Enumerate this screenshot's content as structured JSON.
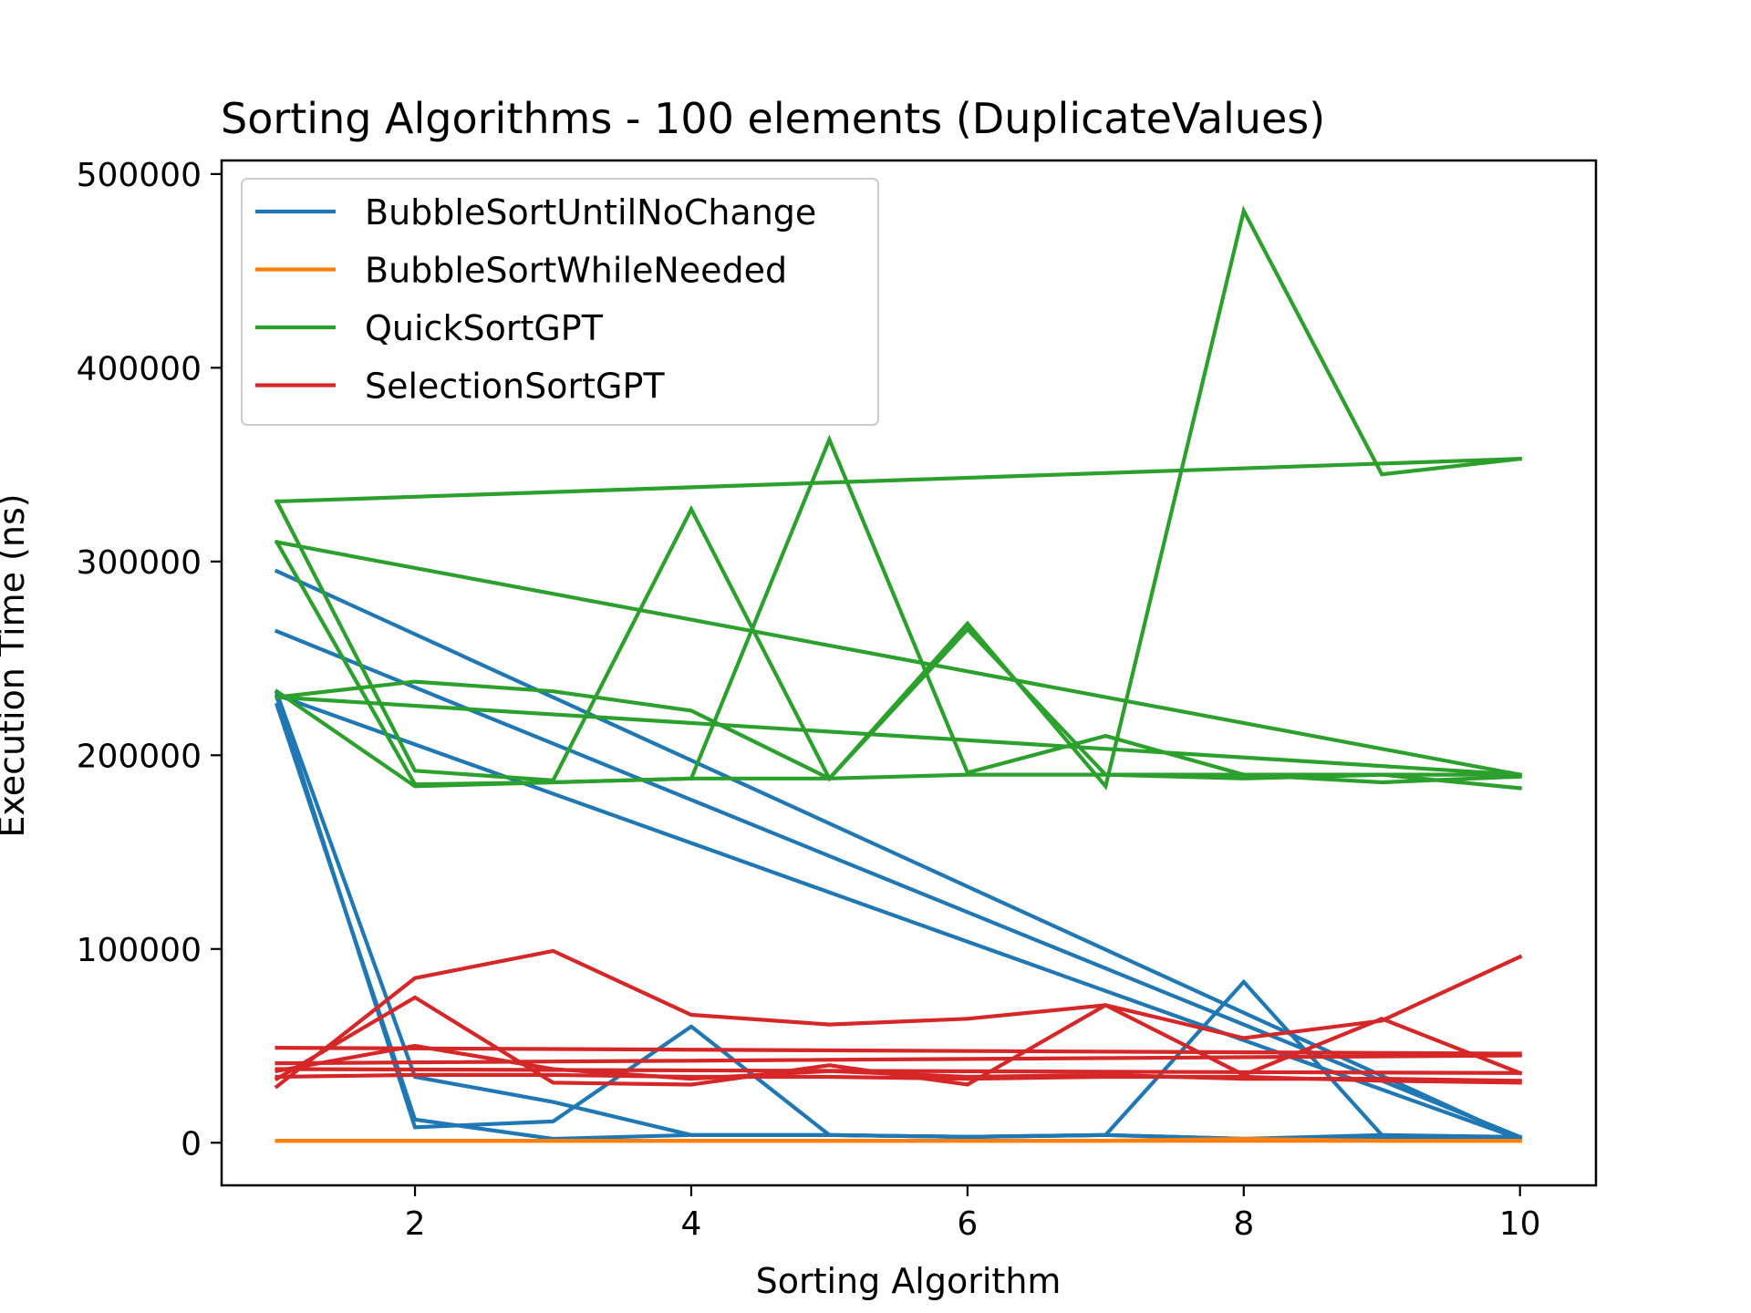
{
  "chart_data": {
    "type": "line",
    "title": "Sorting Algorithms - 100 elements (DuplicateValues)",
    "xlabel": "Sorting Algorithm",
    "ylabel": "Execution Time (ns)",
    "xlim": [
      0.6,
      10.55
    ],
    "ylim": [
      -22000,
      507000
    ],
    "x_ticks": [
      2,
      4,
      6,
      8,
      10
    ],
    "y_ticks": [
      0,
      100000,
      200000,
      300000,
      400000,
      500000
    ],
    "grid": false,
    "legend_position": "upper-left",
    "series": [
      {
        "name": "BubbleSortUntilNoChange",
        "color": "#1f77b4",
        "runs": [
          {
            "x": [
              1,
              2,
              3,
              4,
              5,
              6,
              7,
              8,
              9,
              10
            ],
            "y": [
              226000,
              12000,
              2000,
              4000,
              4000,
              3000,
              4000,
              2000,
              2000,
              2000
            ]
          },
          {
            "x": [
              1,
              2,
              3,
              4,
              5,
              6,
              7,
              8,
              9,
              10
            ],
            "y": [
              232000,
              34000,
              21000,
              4000,
              4000,
              3000,
              4000,
              2000,
              4000,
              2000
            ]
          },
          {
            "x": [
              1,
              2,
              3,
              4,
              5,
              6,
              7,
              8,
              9,
              10
            ],
            "y": [
              230000,
              8000,
              11000,
              60000,
              4000,
              3000,
              4000,
              83000,
              4000,
              3000
            ]
          },
          {
            "x": [
              1,
              10
            ],
            "y": [
              295000,
              2000
            ]
          },
          {
            "x": [
              1,
              10
            ],
            "y": [
              264000,
              3000
            ]
          },
          {
            "x": [
              1,
              10
            ],
            "y": [
              231000,
              2000
            ]
          }
        ]
      },
      {
        "name": "BubbleSortWhileNeeded",
        "color": "#ff7f0e",
        "runs": [
          {
            "x": [
              1,
              2,
              3,
              4,
              5,
              6,
              7,
              8,
              9,
              10
            ],
            "y": [
              1000,
              1000,
              1000,
              1000,
              1000,
              1000,
              1000,
              2000,
              1000,
              1000
            ]
          },
          {
            "x": [
              1,
              2,
              3,
              4,
              5,
              6,
              7,
              8,
              9,
              10
            ],
            "y": [
              1000,
              1000,
              1000,
              1000,
              1000,
              1000,
              1000,
              1000,
              1000,
              1000
            ]
          }
        ]
      },
      {
        "name": "QuickSortGPT",
        "color": "#2ca02c",
        "runs": [
          {
            "x": [
              1,
              2,
              3,
              4,
              5,
              6,
              7,
              8,
              9,
              10
            ],
            "y": [
              331000,
              192000,
              187000,
              327000,
              188000,
              268000,
              184000,
              481000,
              345000,
              353000
            ]
          },
          {
            "x": [
              1,
              2,
              3,
              4,
              5,
              6,
              7,
              8,
              9,
              10
            ],
            "y": [
              310000,
              185000,
              186000,
              188000,
              363000,
              191000,
              210000,
              190000,
              190000,
              183000
            ]
          },
          {
            "x": [
              1,
              2,
              3,
              4,
              5,
              6,
              7,
              8,
              9,
              10
            ],
            "y": [
              230000,
              238000,
              233000,
              223000,
              188000,
              265000,
              190000,
              188000,
              190000,
              190000
            ]
          },
          {
            "x": [
              1,
              2,
              3,
              4,
              5,
              6,
              7,
              8,
              9,
              10
            ],
            "y": [
              233000,
              184000,
              186000,
              188000,
              188000,
              190000,
              190000,
              190000,
              186000,
              189000
            ]
          },
          {
            "x": [
              1,
              10
            ],
            "y": [
              331000,
              353000
            ]
          },
          {
            "x": [
              1,
              10
            ],
            "y": [
              310000,
              190000
            ]
          },
          {
            "x": [
              1,
              10
            ],
            "y": [
              230000,
              190000
            ]
          }
        ]
      },
      {
        "name": "SelectionSortGPT",
        "color": "#d62728",
        "runs": [
          {
            "x": [
              1,
              2,
              3,
              4,
              5,
              6,
              7,
              8,
              9,
              10
            ],
            "y": [
              29000,
              85000,
              99000,
              66000,
              61000,
              64000,
              71000,
              54000,
              63000,
              96000
            ]
          },
          {
            "x": [
              1,
              2,
              3,
              4,
              5,
              6,
              7,
              8,
              9,
              10
            ],
            "y": [
              33000,
              75000,
              31000,
              30000,
              40000,
              30000,
              71000,
              35000,
              64000,
              36000
            ]
          },
          {
            "x": [
              1,
              2,
              3,
              4,
              5,
              6,
              7,
              8,
              9,
              10
            ],
            "y": [
              37000,
              50000,
              38000,
              33000,
              37000,
              34000,
              35000,
              33000,
              33000,
              32000
            ]
          },
          {
            "x": [
              1,
              2,
              3,
              4,
              5,
              6,
              7,
              8,
              9,
              10
            ],
            "y": [
              34000,
              35000,
              35000,
              34000,
              34000,
              33000,
              34000,
              34000,
              32000,
              31000
            ]
          },
          {
            "x": [
              1,
              10
            ],
            "y": [
              49000,
              46000
            ]
          },
          {
            "x": [
              1,
              10
            ],
            "y": [
              41000,
              45000
            ]
          },
          {
            "x": [
              1,
              10
            ],
            "y": [
              38000,
              36000
            ]
          }
        ]
      }
    ]
  }
}
